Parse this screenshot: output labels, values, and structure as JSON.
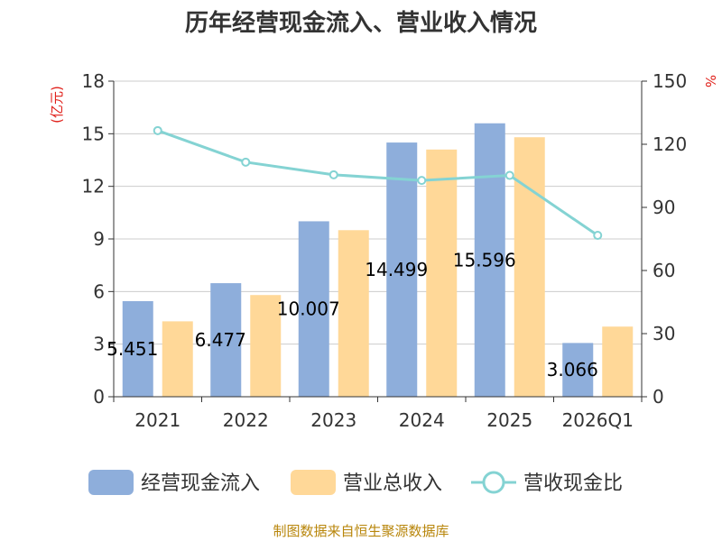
{
  "chart_data": {
    "type": "bar",
    "title": "历年经营现金流入、营业收入情况",
    "categories": [
      "2021",
      "2022",
      "2023",
      "2024",
      "2025",
      "2026Q1"
    ],
    "series": [
      {
        "name": "经营现金流入",
        "type": "bar",
        "axis": "left",
        "color": "#8eaedb",
        "values": [
          5.451,
          6.477,
          10.007,
          14.499,
          15.596,
          3.066
        ],
        "labels": [
          "5.451",
          "6.477",
          "10.007",
          "14.499",
          "15.596",
          "3.066"
        ]
      },
      {
        "name": "营业总收入",
        "type": "bar",
        "axis": "left",
        "color": "#ffd898",
        "values": [
          4.3,
          5.8,
          9.5,
          14.1,
          14.8,
          4.0
        ]
      },
      {
        "name": "营收现金比",
        "type": "line",
        "axis": "right",
        "color": "#84d3d3",
        "values": [
          126.5,
          111.5,
          105.5,
          102.8,
          105.2,
          76.7
        ]
      }
    ],
    "y_left": {
      "unit": "(亿元)",
      "min": 0,
      "max": 18,
      "ticks": [
        0,
        3,
        6,
        9,
        12,
        15,
        18
      ]
    },
    "y_right": {
      "unit": "%",
      "min": 0,
      "max": 150,
      "ticks": [
        0,
        30,
        60,
        90,
        120,
        150
      ]
    },
    "grid": true,
    "legend_position": "bottom"
  },
  "source": "制图数据来自恒生聚源数据库"
}
